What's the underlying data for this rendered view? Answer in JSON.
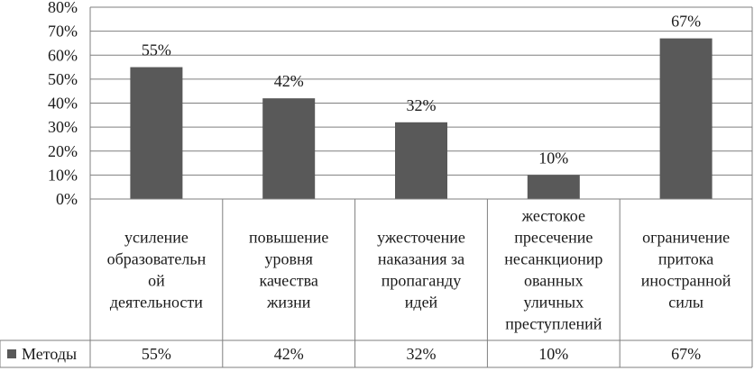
{
  "chart_data": {
    "type": "bar",
    "title": "",
    "xlabel": "",
    "ylabel": "",
    "ylim": [
      0,
      80
    ],
    "yticks": [
      0,
      10,
      20,
      30,
      40,
      50,
      60,
      70,
      80
    ],
    "ytick_labels": [
      "0%",
      "10%",
      "20%",
      "30%",
      "40%",
      "50%",
      "60%",
      "70%",
      "80%"
    ],
    "grid": true,
    "legend": "data-table",
    "bar_color": "#595959",
    "categories": [
      [
        "усиление",
        "образовательн",
        "ой",
        "деятельности"
      ],
      [
        "повышение",
        "уровня",
        "качества",
        "жизни"
      ],
      [
        "ужесточение",
        "наказания за",
        "пропаганду",
        "идей"
      ],
      [
        "жестокое",
        "пресечение",
        "несанкционир",
        "ованных",
        "уличных",
        "преступлений"
      ],
      [
        "ограничение",
        "притока",
        "иностранной",
        "силы"
      ]
    ],
    "series": [
      {
        "name": "Методы",
        "values": [
          55,
          42,
          32,
          10,
          67
        ],
        "value_labels": [
          "55%",
          "42%",
          "32%",
          "10%",
          "67%"
        ]
      }
    ]
  }
}
